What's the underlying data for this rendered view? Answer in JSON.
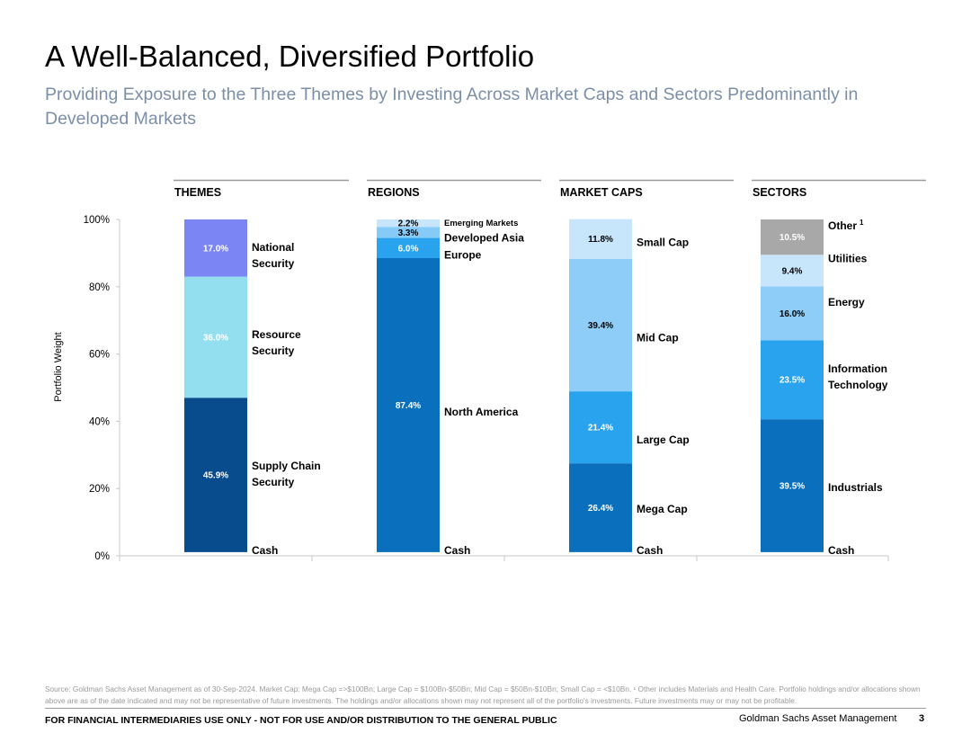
{
  "slide": {
    "title": "A Well-Balanced, Diversified Portfolio",
    "subtitle": "Providing Exposure to the Three Themes by Investing Across Market Caps and Sectors Predominantly in Developed Markets"
  },
  "footer": {
    "source": "Source: Goldman Sachs Asset Management as of 30-Sep-2024. Market Cap: Mega Cap =>$100Bn; Large Cap = $100Bn-$50Bn; Mid Cap = $50Bn-$10Bn; Small Cap = <$10Bn. ¹ Other includes Materials and Health Care. Portfolio holdings and/or allocations shown above are as of the date indicated and may not be representative of future investments. The holdings and/or allocations shown may not represent all of the portfolio's investments. Future investments may or may not be profitable.",
    "disclaimer": "FOR FINANCIAL INTERMEDIARIES USE ONLY - NOT FOR USE AND/OR DISTRIBUTION TO THE GENERAL PUBLIC",
    "firm": "Goldman Sachs Asset Management",
    "page": "3"
  },
  "chart_data": {
    "type": "bar",
    "stacked": true,
    "ylabel": "Portfolio Weight",
    "ylim": [
      0,
      100
    ],
    "yticks": [
      "0%",
      "20%",
      "40%",
      "60%",
      "80%",
      "100%"
    ],
    "yticks_values": [
      0,
      20,
      40,
      60,
      80,
      100
    ],
    "groups": [
      {
        "header": "THEMES",
        "segments": [
          {
            "name": "Cash",
            "value": 1.1,
            "label": "",
            "color": "#ffffff"
          },
          {
            "name": "Supply Chain Security",
            "value": 45.9,
            "label": "45.9%",
            "color": "#084c8d"
          },
          {
            "name": "Resource Security",
            "value": 36.0,
            "label": "36.0%",
            "color": "#93dff0"
          },
          {
            "name": "National Security",
            "value": 17.0,
            "label": "17.0%",
            "color": "#7b86f4"
          }
        ]
      },
      {
        "header": "REGIONS",
        "segments": [
          {
            "name": "Cash",
            "value": 1.1,
            "label": "",
            "color": "#ffffff"
          },
          {
            "name": "North America",
            "value": 87.4,
            "label": "87.4%",
            "color": "#0a70bd"
          },
          {
            "name": "Europe",
            "value": 6.0,
            "label": "6.0%",
            "color": "#2aa3ee"
          },
          {
            "name": "Developed Asia",
            "value": 3.3,
            "label": "3.3%",
            "color": "#86cbf8"
          },
          {
            "name": "Emerging Markets",
            "value": 2.2,
            "label": "2.2%",
            "color": "#c7e6fb"
          }
        ]
      },
      {
        "header": "MARKET CAPS",
        "segments": [
          {
            "name": "Cash",
            "value": 1.1,
            "label": "",
            "color": "#ffffff"
          },
          {
            "name": "Mega Cap",
            "value": 26.4,
            "label": "26.4%",
            "color": "#0a70bd"
          },
          {
            "name": "Large Cap",
            "value": 21.4,
            "label": "21.4%",
            "color": "#2aa3ee"
          },
          {
            "name": "Mid Cap",
            "value": 39.4,
            "label": "39.4%",
            "color": "#8dcdf8"
          },
          {
            "name": "Small Cap",
            "value": 11.8,
            "label": "11.8%",
            "color": "#c7e6fb"
          }
        ]
      },
      {
        "header": "SECTORS",
        "segments": [
          {
            "name": "Cash",
            "value": 1.1,
            "label": "",
            "color": "#ffffff"
          },
          {
            "name": "Industrials",
            "value": 39.5,
            "label": "39.5%",
            "color": "#0a70bd"
          },
          {
            "name": "Information Technology",
            "value": 23.5,
            "label": "23.5%",
            "color": "#2aa3ee"
          },
          {
            "name": "Energy",
            "value": 16.0,
            "label": "16.0%",
            "color": "#8dcdf8"
          },
          {
            "name": "Utilities",
            "value": 9.4,
            "label": "9.4%",
            "color": "#c7e6fb"
          },
          {
            "name": "Other",
            "value": 10.5,
            "label": "10.5%",
            "color": "#a8a8a8",
            "superscript": "1"
          }
        ]
      }
    ],
    "category_labels": [
      [
        {
          "lines": [
            "National",
            "Security"
          ],
          "at": 89.5
        },
        {
          "lines": [
            "Resource",
            "Security"
          ],
          "at": 63.5
        },
        {
          "lines": [
            "Supply Chain",
            "Security"
          ],
          "at": 24.5
        },
        {
          "lines": [
            "Cash"
          ],
          "at": 1.7
        }
      ],
      [
        {
          "lines": [
            "Emerging Markets"
          ],
          "at": 99.3,
          "size": 9.5
        },
        {
          "lines": [
            "Developed Asia"
          ],
          "at": 94.7
        },
        {
          "lines": [
            "Europe"
          ],
          "at": 89.6
        },
        {
          "lines": [
            "North America"
          ],
          "at": 42.9
        },
        {
          "lines": [
            "Cash"
          ],
          "at": 1.7
        }
      ],
      [
        {
          "lines": [
            "Small Cap"
          ],
          "at": 93.3
        },
        {
          "lines": [
            "Mid Cap"
          ],
          "at": 65.0
        },
        {
          "lines": [
            "Large Cap"
          ],
          "at": 34.6
        },
        {
          "lines": [
            "Mega Cap"
          ],
          "at": 14.1
        },
        {
          "lines": [
            "Cash"
          ],
          "at": 1.7
        }
      ],
      [
        {
          "lines": [
            "Other"
          ],
          "at": 98.2,
          "sup": "1"
        },
        {
          "lines": [
            "Utilities"
          ],
          "at": 88.5
        },
        {
          "lines": [
            "Energy"
          ],
          "at": 75.6
        },
        {
          "lines": [
            "Information",
            "Technology"
          ],
          "at": 53.3
        },
        {
          "lines": [
            "Industrials"
          ],
          "at": 20.4
        },
        {
          "lines": [
            "Cash"
          ],
          "at": 1.7
        }
      ]
    ]
  }
}
